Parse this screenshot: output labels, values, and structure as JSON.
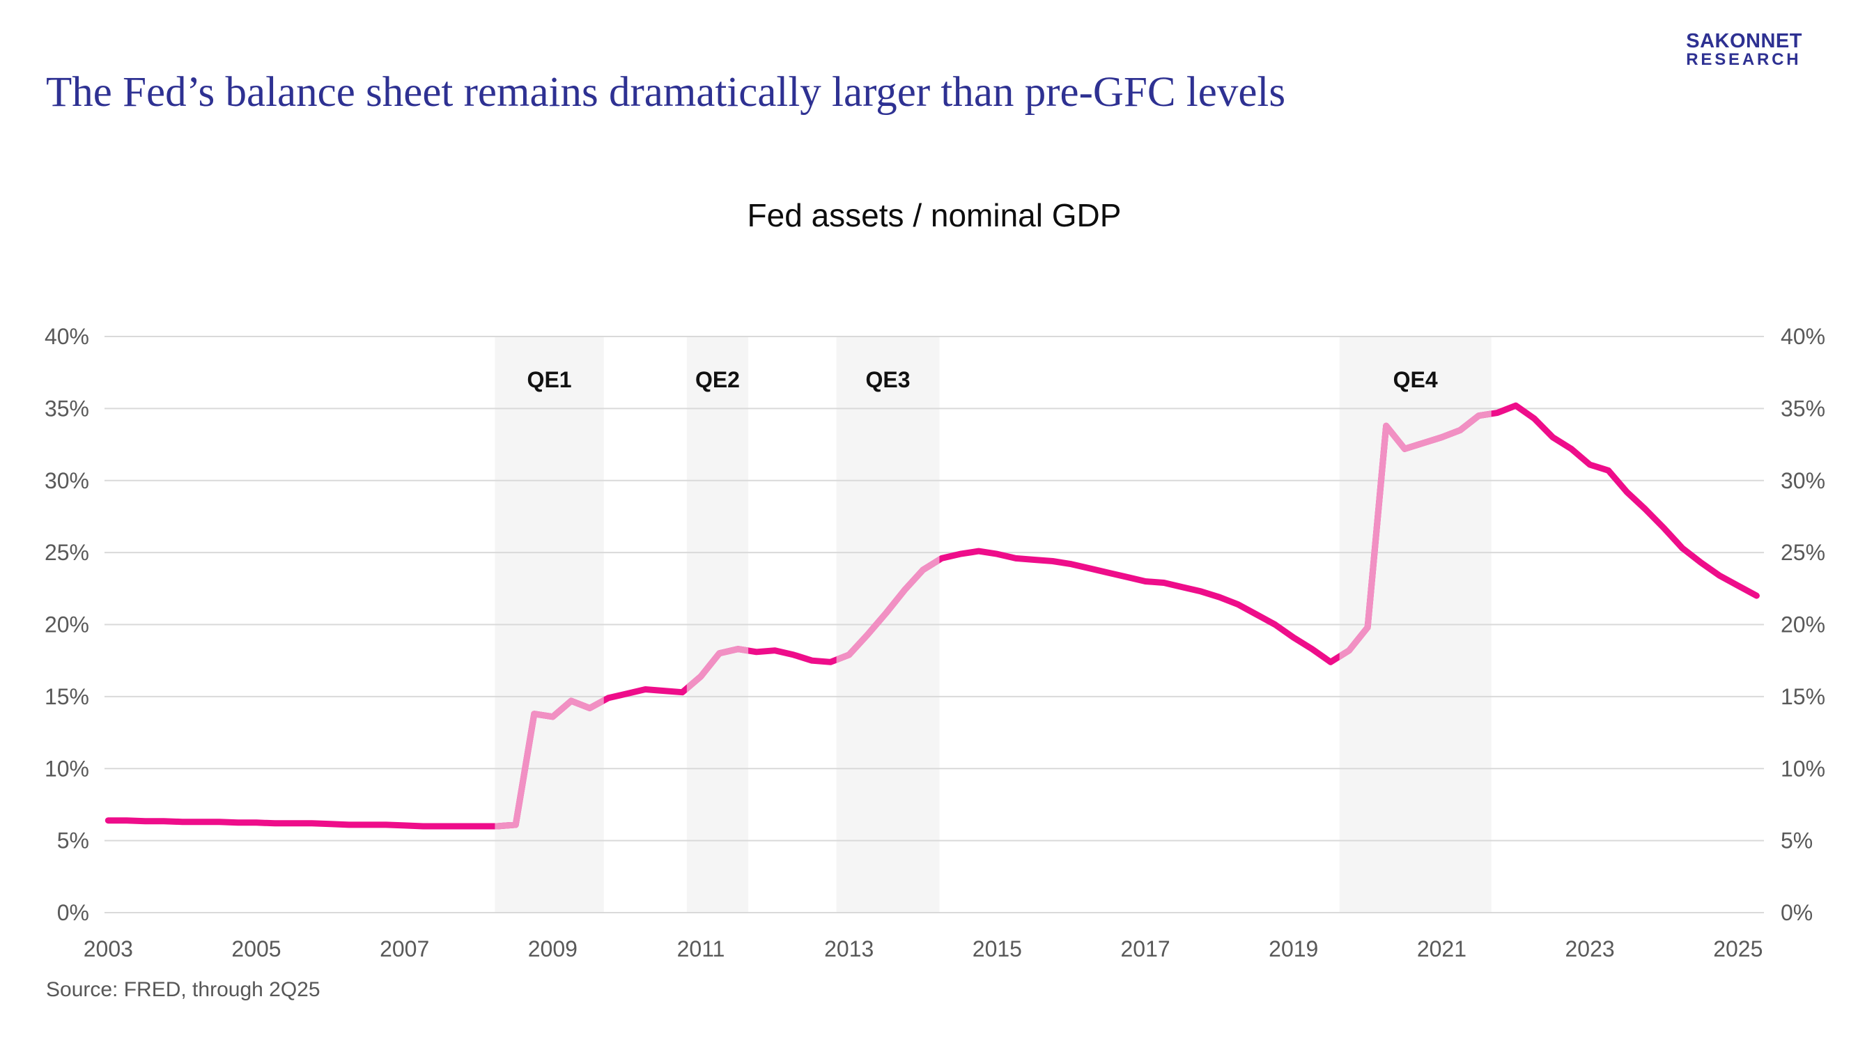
{
  "header": {
    "logo_line1": "SAKONNET",
    "logo_line2": "RESEARCH",
    "title": "The Fed’s balance sheet remains dramatically larger than pre-GFC levels",
    "brand_color": "#2E3192"
  },
  "chart": {
    "title": "Fed assets / nominal GDP",
    "source": "Source: FRED, through 2Q25"
  },
  "chart_data": {
    "type": "line",
    "title": "Fed assets / nominal GDP",
    "xlim": [
      2002.95,
      2025.35
    ],
    "ylim": [
      0,
      40
    ],
    "grid": "horizontal",
    "legend_position": "none",
    "x_ticks": [
      2003,
      2005,
      2007,
      2009,
      2011,
      2013,
      2015,
      2017,
      2019,
      2021,
      2023,
      2025
    ],
    "y_ticks": [
      0,
      5,
      10,
      15,
      20,
      25,
      30,
      35,
      40
    ],
    "y_tick_suffix": "%",
    "y_axis_sides": [
      "left",
      "right"
    ],
    "series": [
      {
        "name": "Fed assets / nominal GDP",
        "x": [
          2003,
          2003.25,
          2003.5,
          2003.75,
          2004,
          2004.25,
          2004.5,
          2004.75,
          2005,
          2005.25,
          2005.5,
          2005.75,
          2006,
          2006.25,
          2006.5,
          2006.75,
          2007,
          2007.25,
          2007.5,
          2007.75,
          2008,
          2008.25,
          2008.5,
          2008.75,
          2009,
          2009.25,
          2009.5,
          2009.75,
          2010,
          2010.25,
          2010.5,
          2010.75,
          2011,
          2011.25,
          2011.5,
          2011.75,
          2012,
          2012.25,
          2012.5,
          2012.75,
          2013,
          2013.25,
          2013.5,
          2013.75,
          2014,
          2014.25,
          2014.5,
          2014.75,
          2015,
          2015.25,
          2015.5,
          2015.75,
          2016,
          2016.25,
          2016.5,
          2016.75,
          2017,
          2017.25,
          2017.5,
          2017.75,
          2018,
          2018.25,
          2018.5,
          2018.75,
          2019,
          2019.25,
          2019.5,
          2019.75,
          2020,
          2020.25,
          2020.5,
          2020.75,
          2021,
          2021.25,
          2021.5,
          2021.75,
          2022,
          2022.25,
          2022.5,
          2022.75,
          2023,
          2023.25,
          2023.5,
          2023.75,
          2024,
          2024.25,
          2024.5,
          2024.75,
          2025,
          2025.25
        ],
        "values": [
          6.4,
          6.4,
          6.35,
          6.35,
          6.3,
          6.3,
          6.3,
          6.25,
          6.25,
          6.2,
          6.2,
          6.2,
          6.15,
          6.1,
          6.1,
          6.1,
          6.05,
          6.0,
          6.0,
          6.0,
          6.0,
          6.0,
          6.1,
          13.8,
          13.6,
          14.7,
          14.2,
          14.9,
          15.2,
          15.5,
          15.4,
          15.3,
          16.4,
          18.0,
          18.3,
          18.1,
          18.2,
          17.9,
          17.5,
          17.4,
          17.9,
          19.3,
          20.8,
          22.4,
          23.8,
          24.6,
          24.9,
          25.1,
          24.9,
          24.6,
          24.5,
          24.4,
          24.2,
          23.9,
          23.6,
          23.3,
          23.0,
          22.9,
          22.6,
          22.3,
          21.9,
          21.4,
          20.7,
          20.0,
          19.1,
          18.3,
          17.4,
          18.2,
          19.8,
          33.8,
          32.2,
          32.6,
          33.0,
          33.5,
          34.5,
          34.7,
          35.2,
          34.3,
          33.0,
          32.2,
          31.1,
          30.7,
          29.2,
          28.0,
          26.7,
          25.3,
          24.3,
          23.4,
          22.7,
          22.0
        ]
      }
    ],
    "annotations": [
      {
        "label": "QE1",
        "x_start": 2008.22,
        "x_end": 2009.69
      },
      {
        "label": "QE2",
        "x_start": 2010.81,
        "x_end": 2011.64
      },
      {
        "label": "QE3",
        "x_start": 2012.83,
        "x_end": 2014.22
      },
      {
        "label": "QE4",
        "x_start": 2019.62,
        "x_end": 2021.67
      }
    ],
    "colors": {
      "line": "#EE0D8A",
      "line_in_qe_band": "#F190C3",
      "qe_band_fill": "#F5F5F5",
      "gridline": "#D9D9D9",
      "tick_text": "#595959",
      "qe_label_text": "#111111"
    }
  }
}
